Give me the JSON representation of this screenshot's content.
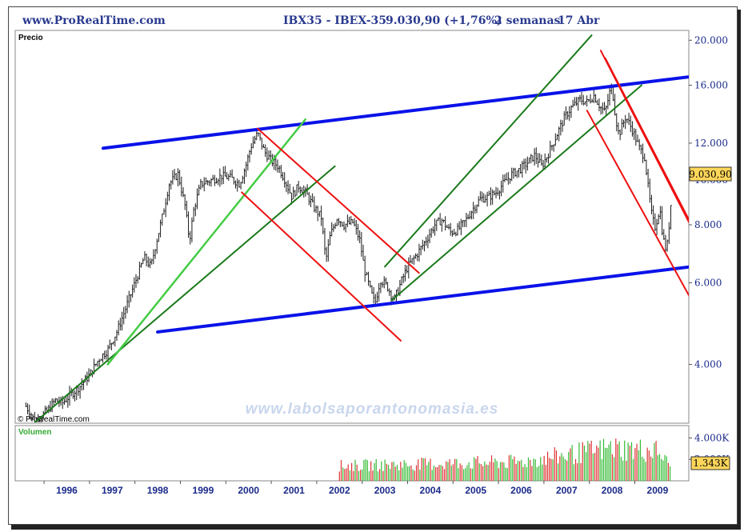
{
  "header": {
    "site": "www.ProRealTime.com",
    "instrument": "IBX35 - IBEX-35",
    "price_change": "9.030,90 (+1,76%)",
    "period": "2 semanas",
    "date": "17 Abr"
  },
  "panels": {
    "price_label": "Precio",
    "volume_label": "Volumen",
    "copyright": "© ProRealTime.com",
    "watermark": "www.labolsaporantonomasia.es",
    "last_price_badge": "9.030,90",
    "last_volume_badge": "1.343K"
  },
  "colors": {
    "price_line": "#1a1a1a",
    "trend_blue": "#0a12e8",
    "trend_green": "#1a7a1a",
    "trend_lightgreen": "#44cc44",
    "trend_red": "#ee1111",
    "axis_text": "#1a2a8a",
    "vol_up": "#33bb33",
    "vol_down": "#dd3333",
    "badge_bg": "#ffd75a"
  },
  "chart_data": [
    {
      "type": "line",
      "panel": "price",
      "title": "IBX35 - IBEX-35",
      "scale": "log",
      "ylim": [
        3000,
        21000
      ],
      "xlim": [
        1995.1,
        2009.8
      ],
      "y_ticks": [
        "20.000",
        "16.000",
        "12.000",
        "10.000",
        "8.000",
        "6.000",
        "4.000"
      ],
      "y_tick_values": [
        20000,
        16000,
        12000,
        10000,
        8000,
        6000,
        4000
      ],
      "x_ticks": [
        "1996",
        "1997",
        "1998",
        "1999",
        "2000",
        "2001",
        "2002",
        "2003",
        "2004",
        "2005",
        "2006",
        "2007",
        "2008",
        "2009"
      ],
      "grid": false,
      "series": [
        {
          "points": [
            [
              1995.1,
              3250
            ],
            [
              1995.2,
              3150
            ],
            [
              1995.3,
              3000
            ],
            [
              1995.45,
              3100
            ],
            [
              1995.6,
              3200
            ],
            [
              1995.75,
              3350
            ],
            [
              1995.9,
              3300
            ],
            [
              1996.1,
              3450
            ],
            [
              1996.3,
              3600
            ],
            [
              1996.5,
              3800
            ],
            [
              1996.7,
              4100
            ],
            [
              1996.9,
              4300
            ],
            [
              1997.1,
              4700
            ],
            [
              1997.3,
              5300
            ],
            [
              1997.5,
              6000
            ],
            [
              1997.7,
              6800
            ],
            [
              1997.85,
              6500
            ],
            [
              1997.95,
              7200
            ],
            [
              1998.1,
              8300
            ],
            [
              1998.25,
              9800
            ],
            [
              1998.45,
              10300
            ],
            [
              1998.6,
              8800
            ],
            [
              1998.7,
              7400
            ],
            [
              1998.8,
              8700
            ],
            [
              1998.95,
              9800
            ],
            [
              1999.2,
              10000
            ],
            [
              1999.4,
              10200
            ],
            [
              1999.6,
              10100
            ],
            [
              1999.8,
              9800
            ],
            [
              1999.95,
              10800
            ],
            [
              2000.05,
              11800
            ],
            [
              2000.2,
              12600
            ],
            [
              2000.35,
              11500
            ],
            [
              2000.5,
              11000
            ],
            [
              2000.65,
              10700
            ],
            [
              2000.8,
              10000
            ],
            [
              2000.95,
              9200
            ],
            [
              2001.1,
              9700
            ],
            [
              2001.25,
              9400
            ],
            [
              2001.45,
              8700
            ],
            [
              2001.6,
              8300
            ],
            [
              2001.7,
              6700
            ],
            [
              2001.8,
              7600
            ],
            [
              2001.95,
              8300
            ],
            [
              2002.1,
              8000
            ],
            [
              2002.3,
              8100
            ],
            [
              2002.45,
              7400
            ],
            [
              2002.55,
              6400
            ],
            [
              2002.7,
              5700
            ],
            [
              2002.78,
              5400
            ],
            [
              2002.9,
              6100
            ],
            [
              2003.05,
              5900
            ],
            [
              2003.2,
              5500
            ],
            [
              2003.35,
              6000
            ],
            [
              2003.5,
              6500
            ],
            [
              2003.7,
              6900
            ],
            [
              2003.9,
              7400
            ],
            [
              2004.1,
              8000
            ],
            [
              2004.25,
              8200
            ],
            [
              2004.45,
              7700
            ],
            [
              2004.6,
              7800
            ],
            [
              2004.75,
              8100
            ],
            [
              2004.95,
              8700
            ],
            [
              2005.1,
              9100
            ],
            [
              2005.3,
              9200
            ],
            [
              2005.45,
              9400
            ],
            [
              2005.6,
              9800
            ],
            [
              2005.8,
              10300
            ],
            [
              2005.95,
              10500
            ],
            [
              2006.1,
              10800
            ],
            [
              2006.3,
              11300
            ],
            [
              2006.45,
              10700
            ],
            [
              2006.6,
              11400
            ],
            [
              2006.75,
              12300
            ],
            [
              2006.95,
              13600
            ],
            [
              2007.1,
              14300
            ],
            [
              2007.3,
              14900
            ],
            [
              2007.45,
              14700
            ],
            [
              2007.6,
              15200
            ],
            [
              2007.75,
              14300
            ],
            [
              2007.85,
              14000
            ],
            [
              2007.95,
              15500
            ],
            [
              2008.0,
              15800
            ],
            [
              2008.08,
              13600
            ],
            [
              2008.15,
              12500
            ],
            [
              2008.3,
              13700
            ],
            [
              2008.45,
              12800
            ],
            [
              2008.6,
              11700
            ],
            [
              2008.72,
              11200
            ],
            [
              2008.8,
              9500
            ],
            [
              2008.88,
              8300
            ],
            [
              2008.95,
              7900
            ],
            [
              2009.05,
              8700
            ],
            [
              2009.12,
              7500
            ],
            [
              2009.2,
              7000
            ],
            [
              2009.25,
              7900
            ],
            [
              2009.3,
              9030
            ]
          ]
        }
      ],
      "trendlines": [
        {
          "color": "blue",
          "points": [
            [
              1996.8,
              11700
            ],
            [
              2009.75,
              16700
            ]
          ]
        },
        {
          "color": "blue",
          "points": [
            [
              1998.0,
              4700
            ],
            [
              2009.75,
              6500
            ]
          ]
        },
        {
          "color": "green",
          "points": [
            [
              1995.3,
              3000
            ],
            [
              2001.9,
              10700
            ]
          ]
        },
        {
          "color": "lightgreen",
          "points": [
            [
              1996.9,
              4000
            ],
            [
              2001.25,
              13500
            ]
          ]
        },
        {
          "color": "green",
          "points": [
            [
              2003.15,
              5500
            ],
            [
              2008.65,
              16000
            ]
          ]
        },
        {
          "color": "green",
          "points": [
            [
              2003.0,
              6500
            ],
            [
              2007.55,
              20500
            ]
          ]
        },
        {
          "color": "red",
          "points": [
            [
              2000.2,
              12900
            ],
            [
              2003.75,
              6300
            ]
          ]
        },
        {
          "color": "red",
          "points": [
            [
              1999.85,
              9400
            ],
            [
              2003.35,
              4500
            ]
          ]
        },
        {
          "color": "red",
          "points": [
            [
              2007.75,
              19000
            ],
            [
              2009.75,
              7900
            ]
          ]
        },
        {
          "color": "red",
          "points": [
            [
              2007.85,
              18300
            ],
            [
              2009.75,
              8000
            ]
          ]
        },
        {
          "color": "red",
          "points": [
            [
              2007.45,
              14100
            ],
            [
              2009.75,
              5500
            ]
          ]
        }
      ]
    },
    {
      "type": "bar",
      "panel": "volume",
      "title": "Volumen",
      "ylim": [
        0,
        5000
      ],
      "y_ticks": [
        "4.000K",
        "2.000K"
      ],
      "y_tick_values": [
        4000,
        2000
      ],
      "last_value": 1343,
      "series": [
        {
          "start": 2002.0,
          "end": 2009.3,
          "step": 0.0385,
          "profile": [
            [
              2002.0,
              1500
            ],
            [
              2004.0,
              1700
            ],
            [
              2006.0,
              1900
            ],
            [
              2007.0,
              2600
            ],
            [
              2008.0,
              3300
            ],
            [
              2009.0,
              3000
            ],
            [
              2009.3,
              1343
            ]
          ]
        }
      ]
    }
  ]
}
